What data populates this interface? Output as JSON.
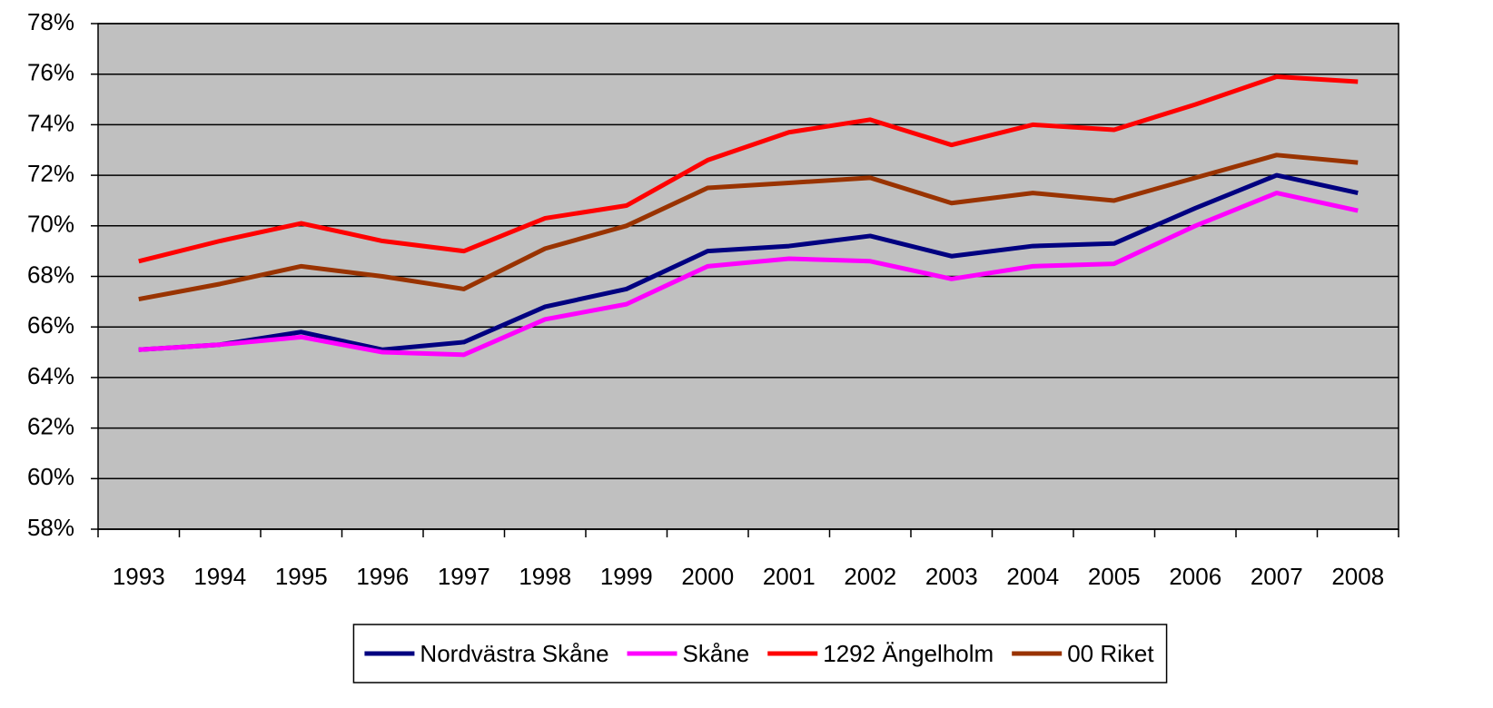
{
  "chart_data": {
    "type": "line",
    "categories": [
      "1993",
      "1994",
      "1995",
      "1996",
      "1997",
      "1998",
      "1999",
      "2000",
      "2001",
      "2002",
      "2003",
      "2004",
      "2005",
      "2006",
      "2007",
      "2008"
    ],
    "series": [
      {
        "name": "Nordvästra Skåne",
        "color": "#000080",
        "values": [
          65.1,
          65.3,
          65.8,
          65.1,
          65.4,
          66.8,
          67.5,
          69.0,
          69.2,
          69.6,
          68.8,
          69.2,
          69.3,
          70.7,
          72.0,
          71.3
        ]
      },
      {
        "name": "Skåne",
        "color": "#ff00ff",
        "values": [
          65.1,
          65.3,
          65.6,
          65.0,
          64.9,
          66.3,
          66.9,
          68.4,
          68.7,
          68.6,
          67.9,
          68.4,
          68.5,
          70.0,
          71.3,
          70.6
        ]
      },
      {
        "name": "1292 Ängelholm",
        "color": "#ff0000",
        "values": [
          68.6,
          69.4,
          70.1,
          69.4,
          69.0,
          70.3,
          70.8,
          72.6,
          73.7,
          74.2,
          73.2,
          74.0,
          73.8,
          74.8,
          75.9,
          75.7
        ]
      },
      {
        "name": "00 Riket",
        "color": "#993300",
        "values": [
          67.1,
          67.7,
          68.4,
          68.0,
          67.5,
          69.1,
          70.0,
          71.5,
          71.7,
          71.9,
          70.9,
          71.3,
          71.0,
          71.9,
          72.8,
          72.5
        ]
      }
    ],
    "ylim": [
      58,
      78
    ],
    "yticks": [
      {
        "value": 58,
        "label": "58%"
      },
      {
        "value": 60,
        "label": "60%"
      },
      {
        "value": 62,
        "label": "62%"
      },
      {
        "value": 64,
        "label": "64%"
      },
      {
        "value": 66,
        "label": "66%"
      },
      {
        "value": 68,
        "label": "68%"
      },
      {
        "value": 70,
        "label": "70%"
      },
      {
        "value": 72,
        "label": "72%"
      },
      {
        "value": 74,
        "label": "74%"
      },
      {
        "value": 76,
        "label": "76%"
      },
      {
        "value": 78,
        "label": "78%"
      }
    ],
    "grid": true,
    "legend": "bottom",
    "plot_background": "#c0c0c0"
  }
}
